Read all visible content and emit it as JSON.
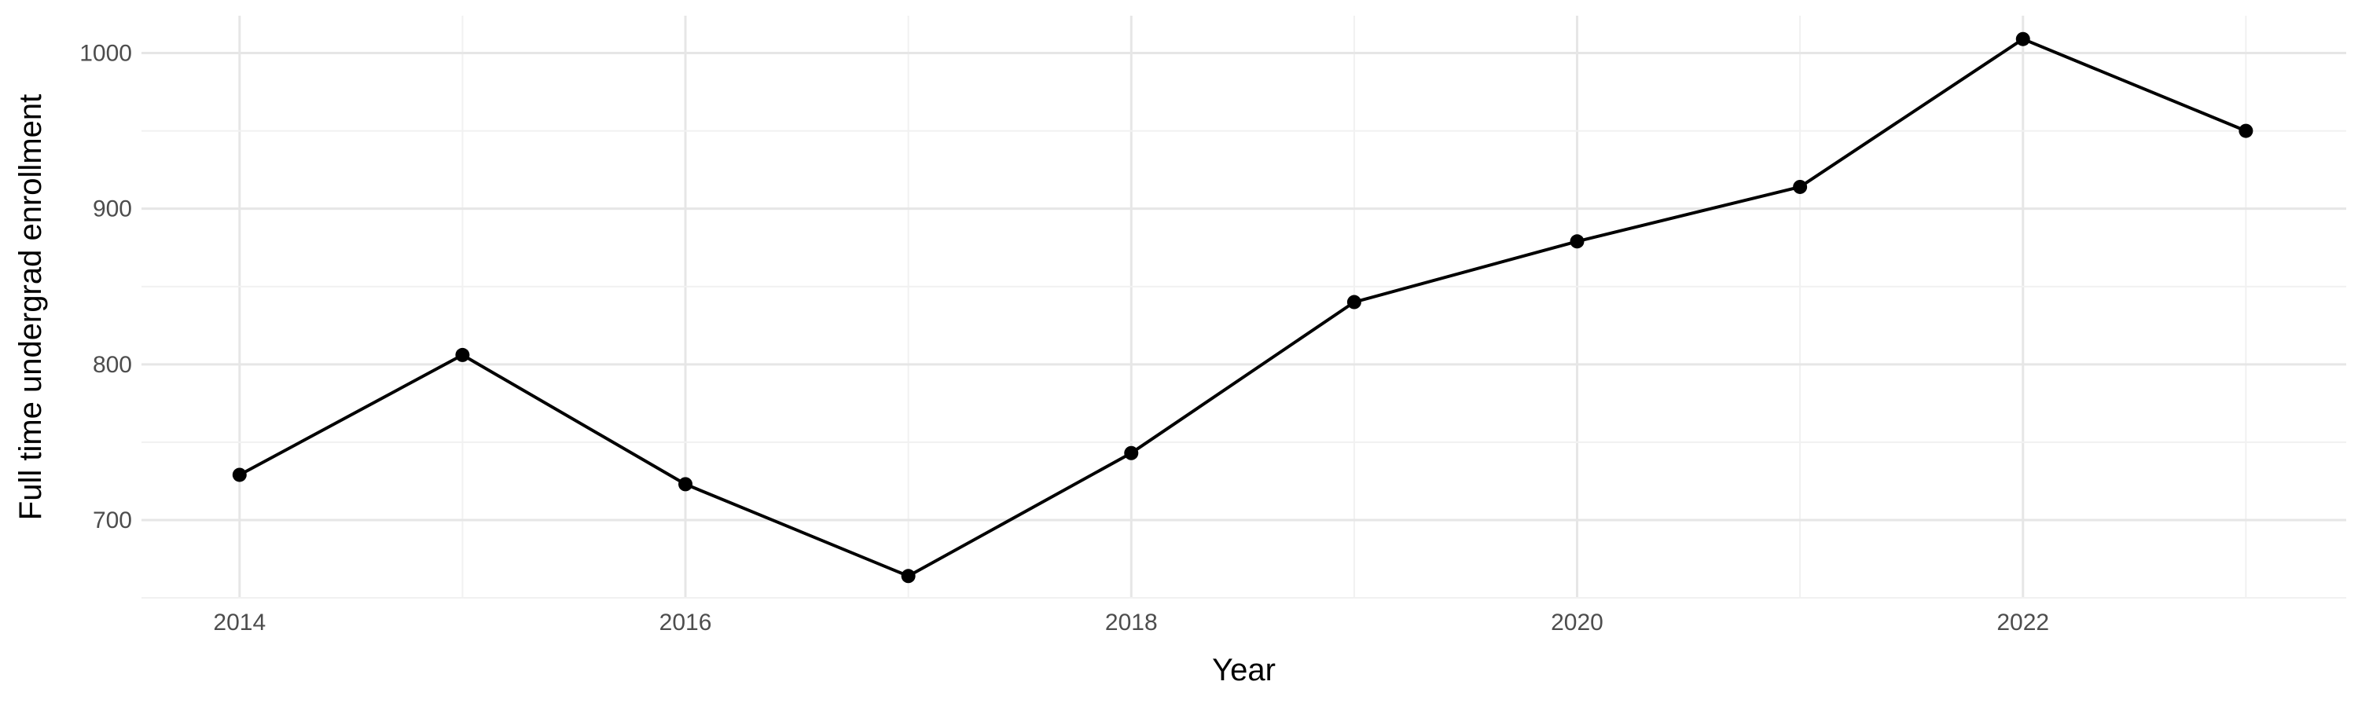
{
  "chart_data": {
    "type": "line",
    "x": [
      2014,
      2015,
      2016,
      2017,
      2018,
      2019,
      2020,
      2021,
      2022,
      2023
    ],
    "series": [
      {
        "values": [
          729,
          806,
          723,
          664,
          743,
          840,
          879,
          914,
          1009,
          950
        ]
      }
    ],
    "xlabel": "Year",
    "ylabel": "Full time undergrad enrollment",
    "xlim": [
      2013.56,
      2023.45
    ],
    "ylim": [
      649.5,
      1024
    ],
    "x_ticks": [
      "2014",
      "2016",
      "2018",
      "2020",
      "2022"
    ],
    "y_ticks": [
      "700",
      "800",
      "900",
      "1000"
    ],
    "grid": true,
    "colors": {
      "line": "#000000",
      "grid": "#ebebeb",
      "background": "#ffffff"
    }
  }
}
